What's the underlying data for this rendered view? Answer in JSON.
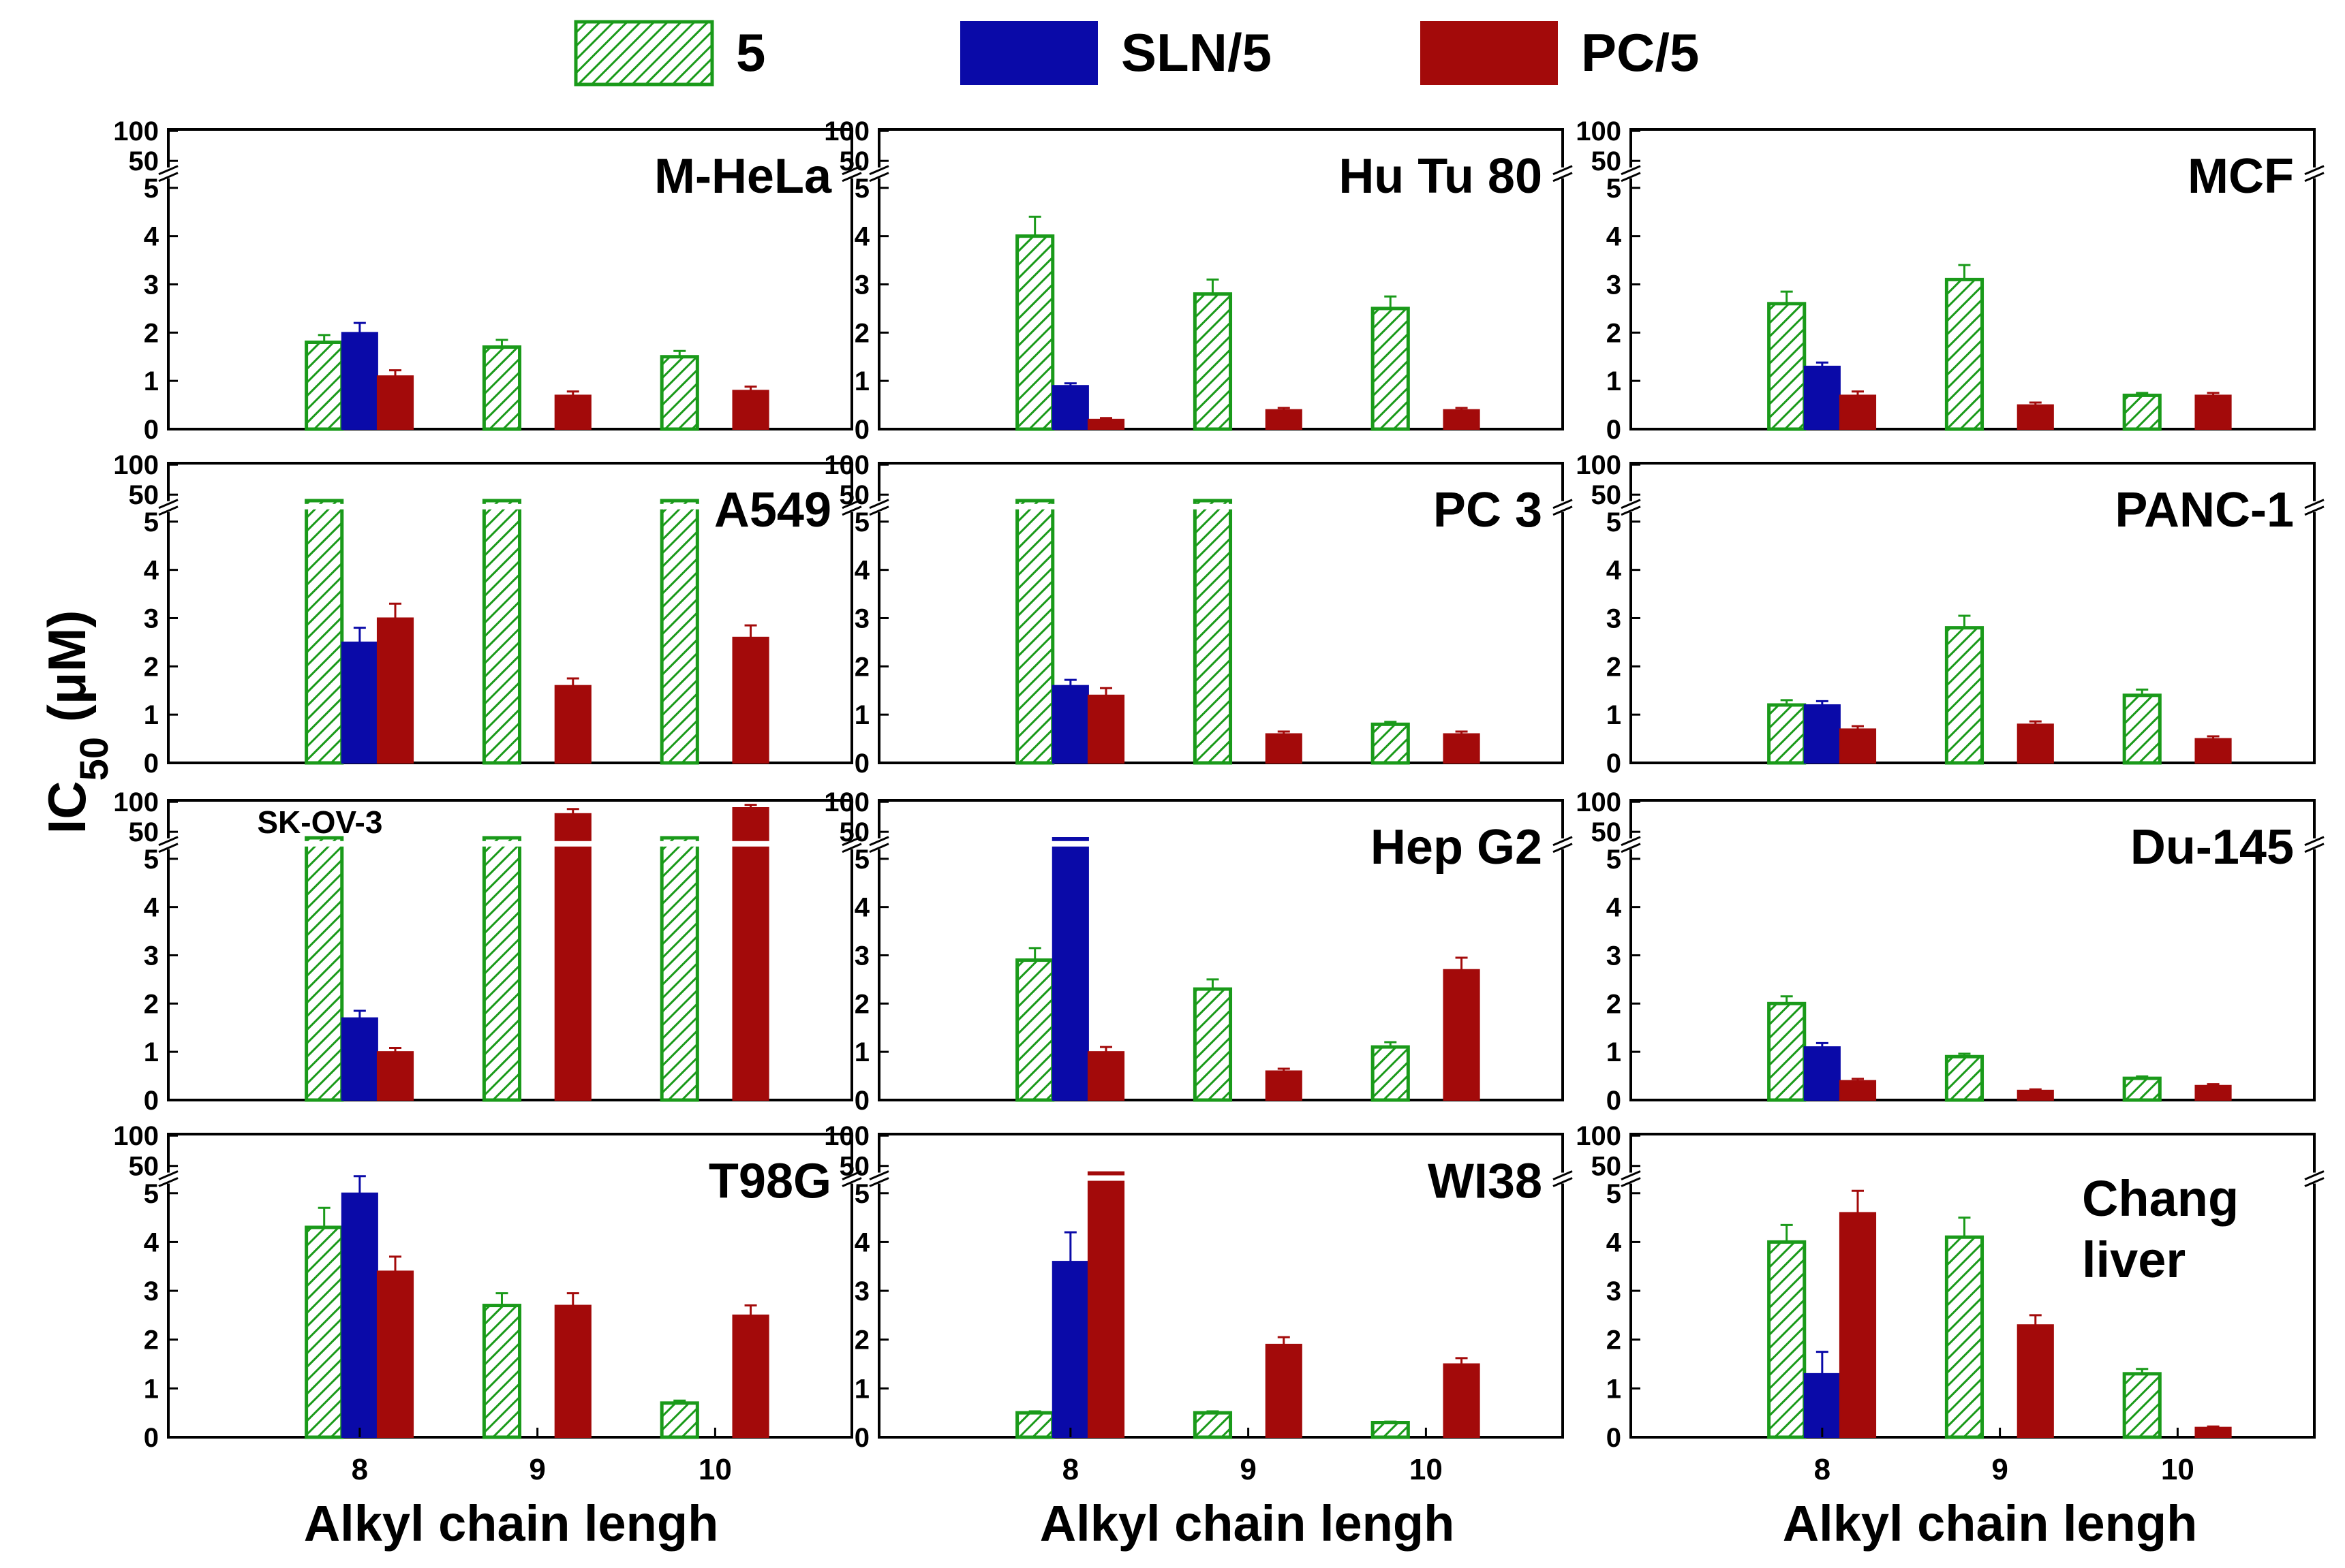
{
  "chart_data": {
    "type": "bar",
    "categories": [
      "8",
      "9",
      "10"
    ],
    "xlabel": "Alkyl chain lengh",
    "ylabel": "IC50 (μM)",
    "y_axis": {
      "lower_ticks": [
        "0",
        "1",
        "2",
        "3",
        "4",
        "5"
      ],
      "upper_ticks": [
        "50",
        "100"
      ],
      "lower_range": [
        0,
        5
      ],
      "upper_range": [
        50,
        100
      ],
      "broken": true
    },
    "legend_position": "top",
    "series": [
      {
        "name": "5",
        "color": "#1a9a1a",
        "pattern": "hatched"
      },
      {
        "name": "SLN/5",
        "color": "#0a0aa8",
        "pattern": "solid"
      },
      {
        "name": "PC/5",
        "color": "#a30a0a",
        "pattern": "solid"
      }
    ],
    "panels": [
      {
        "title": "M-HeLa",
        "values": {
          "5": [
            1.8,
            1.7,
            1.5
          ],
          "SLN/5": [
            2.0,
            null,
            null
          ],
          "PC/5": [
            1.1,
            0.7,
            0.8
          ]
        },
        "errors": {
          "5": [
            0.15,
            0.15,
            0.12
          ],
          "SLN/5": [
            0.2,
            null,
            null
          ],
          "PC/5": [
            0.12,
            0.08,
            0.08
          ]
        }
      },
      {
        "title": "Hu Tu 80",
        "values": {
          "5": [
            4.0,
            2.8,
            2.5
          ],
          "SLN/5": [
            0.9,
            null,
            null
          ],
          "PC/5": [
            0.2,
            0.4,
            0.4
          ]
        },
        "errors": {
          "5": [
            0.4,
            0.3,
            0.25
          ],
          "SLN/5": [
            0.05,
            null,
            null
          ],
          "PC/5": [
            0.03,
            0.04,
            0.04
          ]
        }
      },
      {
        "title": "MCF",
        "values": {
          "5": [
            2.6,
            3.1,
            0.7
          ],
          "SLN/5": [
            1.3,
            null,
            null
          ],
          "PC/5": [
            0.7,
            0.5,
            0.7
          ]
        },
        "errors": {
          "5": [
            0.25,
            0.3,
            0.05
          ],
          "SLN/5": [
            0.08,
            null,
            null
          ],
          "PC/5": [
            0.08,
            0.05,
            0.05
          ]
        }
      },
      {
        "title": "A549",
        "values": {
          "5": [
            ">100",
            ">100",
            ">100"
          ],
          "SLN/5": [
            2.5,
            null,
            null
          ],
          "PC/5": [
            3.0,
            1.6,
            2.6
          ]
        },
        "errors": {
          "5": [
            null,
            null,
            null
          ],
          "SLN/5": [
            0.3,
            null,
            null
          ],
          "PC/5": [
            0.3,
            0.15,
            0.25
          ]
        }
      },
      {
        "title": "PC 3",
        "values": {
          "5": [
            ">100",
            ">100",
            0.8
          ],
          "SLN/5": [
            1.6,
            null,
            null
          ],
          "PC/5": [
            1.4,
            0.6,
            0.6
          ]
        },
        "errors": {
          "5": [
            null,
            null,
            0.05
          ],
          "SLN/5": [
            0.12,
            null,
            null
          ],
          "PC/5": [
            0.15,
            0.05,
            0.05
          ]
        }
      },
      {
        "title": "PANC-1",
        "values": {
          "5": [
            1.2,
            2.8,
            1.4
          ],
          "SLN/5": [
            1.2,
            null,
            null
          ],
          "PC/5": [
            0.7,
            0.8,
            0.5
          ]
        },
        "errors": {
          "5": [
            0.1,
            0.25,
            0.12
          ],
          "SLN/5": [
            0.08,
            null,
            null
          ],
          "PC/5": [
            0.06,
            0.06,
            0.05
          ]
        }
      },
      {
        "title": "SK-OV-3",
        "values": {
          "5": [
            ">100",
            ">100",
            ">100"
          ],
          "SLN/5": [
            1.7,
            null,
            null
          ],
          "PC/5": [
            1.0,
            80,
            90
          ]
        },
        "errors": {
          "5": [
            null,
            null,
            null
          ],
          "SLN/5": [
            0.15,
            null,
            null
          ],
          "PC/5": [
            0.08,
            8,
            5
          ]
        }
      },
      {
        "title": "Hep G2",
        "values": {
          "5": [
            2.9,
            2.3,
            1.1
          ],
          "SLN/5": [
            ">100",
            null,
            null
          ],
          "PC/5": [
            1.0,
            0.6,
            2.7
          ]
        },
        "errors": {
          "5": [
            0.25,
            0.2,
            0.1
          ],
          "SLN/5": [
            null,
            null,
            null
          ],
          "PC/5": [
            0.1,
            0.05,
            0.25
          ]
        }
      },
      {
        "title": "Du-145",
        "values": {
          "5": [
            2.0,
            0.9,
            0.45
          ],
          "SLN/5": [
            1.1,
            null,
            null
          ],
          "PC/5": [
            0.4,
            0.2,
            0.3
          ]
        },
        "errors": {
          "5": [
            0.15,
            0.06,
            0.04
          ],
          "SLN/5": [
            0.08,
            null,
            null
          ],
          "PC/5": [
            0.04,
            0.02,
            0.03
          ]
        }
      },
      {
        "title": "T98G",
        "values": {
          "5": [
            4.3,
            2.7,
            0.7
          ],
          "SLN/5": [
            5.0,
            null,
            null
          ],
          "PC/5": [
            3.4,
            2.7,
            2.5
          ]
        },
        "errors": {
          "5": [
            0.4,
            0.25,
            0.05
          ],
          "SLN/5": [
            0.35,
            null,
            null
          ],
          "PC/5": [
            0.3,
            0.25,
            0.2
          ]
        }
      },
      {
        "title": "WI38",
        "values": {
          "5": [
            0.5,
            0.5,
            0.3
          ],
          "SLN/5": [
            3.6,
            null,
            null
          ],
          "PC/5": [
            ">100",
            1.9,
            1.5
          ]
        },
        "errors": {
          "5": [
            0.03,
            0.03,
            0.02
          ],
          "SLN/5": [
            0.6,
            null,
            null
          ],
          "PC/5": [
            null,
            0.15,
            0.12
          ]
        }
      },
      {
        "title": "Chang liver",
        "values": {
          "5": [
            4.0,
            4.1,
            1.3
          ],
          "SLN/5": [
            1.3,
            null,
            null
          ],
          "PC/5": [
            4.6,
            2.3,
            0.2
          ]
        },
        "errors": {
          "5": [
            0.35,
            0.4,
            0.1
          ],
          "SLN/5": [
            0.45,
            null,
            null
          ],
          "PC/5": [
            0.45,
            0.2,
            0.02
          ]
        }
      }
    ]
  }
}
